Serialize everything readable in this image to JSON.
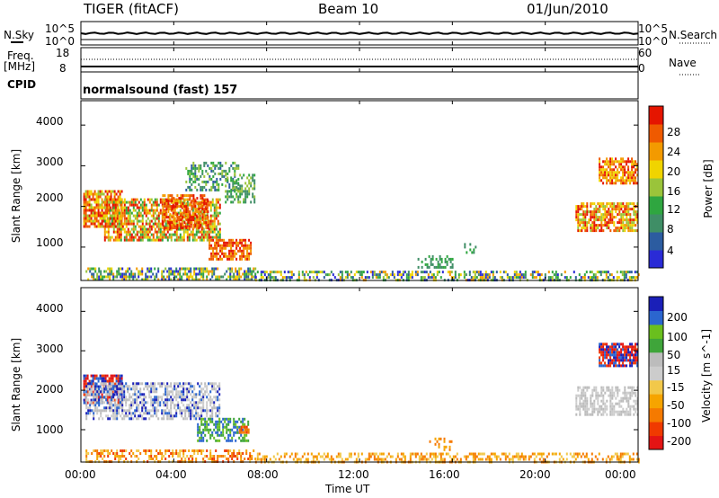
{
  "header": {
    "radar": "TIGER (fitACF)",
    "beam": "Beam 10",
    "date": "01/Jun/2010"
  },
  "colors": {
    "power_scale": [
      "#2a2bd6",
      "#2c5ca0",
      "#3f8e66",
      "#2fa640",
      "#9ac43a",
      "#f0d400",
      "#f39a00",
      "#ef5a00",
      "#e51500"
    ],
    "velocity_scale": [
      "#e41414",
      "#f03a00",
      "#f57a00",
      "#f6a400",
      "#f2c84a",
      "#cccccc",
      "#bcbcbc",
      "#3fa53a",
      "#6abf1e",
      "#2b66cf",
      "#1a1fb8"
    ]
  },
  "chart_data": [
    {
      "type": "line",
      "name": "noise-panel",
      "left_label": "N.Sky",
      "right_label": "N.Search",
      "left_ticks": [
        "10^5",
        "10^0"
      ],
      "right_ticks": [
        "10^5",
        "10^0"
      ]
    },
    {
      "type": "scatter",
      "name": "frequency-panel",
      "left_label": "Freq.",
      "left_unit": "[MHz]",
      "right_label": "Nave",
      "left_ticks": [
        18,
        8
      ],
      "right_ticks": [
        60,
        0
      ],
      "ylim_left": [
        8,
        18
      ],
      "ylim_right": [
        0,
        60
      ]
    },
    {
      "type": "table",
      "name": "cpid-panel",
      "label": "CPID",
      "value": "normalsound (fast) 157"
    },
    {
      "type": "heatmap",
      "name": "power-panel",
      "ylabel": "Slant Range [km]",
      "ylim": [
        180,
        4600
      ],
      "yticks": [
        1000,
        2000,
        3000,
        4000
      ],
      "colorbar_label": "Power [dB]",
      "colorbar_ticks": [
        4,
        8,
        12,
        16,
        20,
        24,
        28
      ],
      "colorbar_range": [
        0,
        30
      ]
    },
    {
      "type": "heatmap",
      "name": "velocity-panel",
      "ylabel": "Slant Range [km]",
      "xlabel": "Time UT",
      "ylim": [
        180,
        4600
      ],
      "yticks": [
        1000,
        2000,
        3000,
        4000
      ],
      "colorbar_label": "Velocity [m s^-1]",
      "colorbar_ticks": [
        "200",
        "100",
        "50",
        "15",
        "-15",
        "-50",
        "-100",
        "-200"
      ]
    }
  ],
  "x_axis": {
    "tick_labels": [
      "00:00",
      "04:00",
      "08:00",
      "12:00",
      "16:00",
      "20:00",
      "00:00"
    ],
    "tick_hours": [
      0,
      4,
      8,
      12,
      16,
      20,
      24
    ],
    "xlim": [
      0,
      24
    ]
  }
}
